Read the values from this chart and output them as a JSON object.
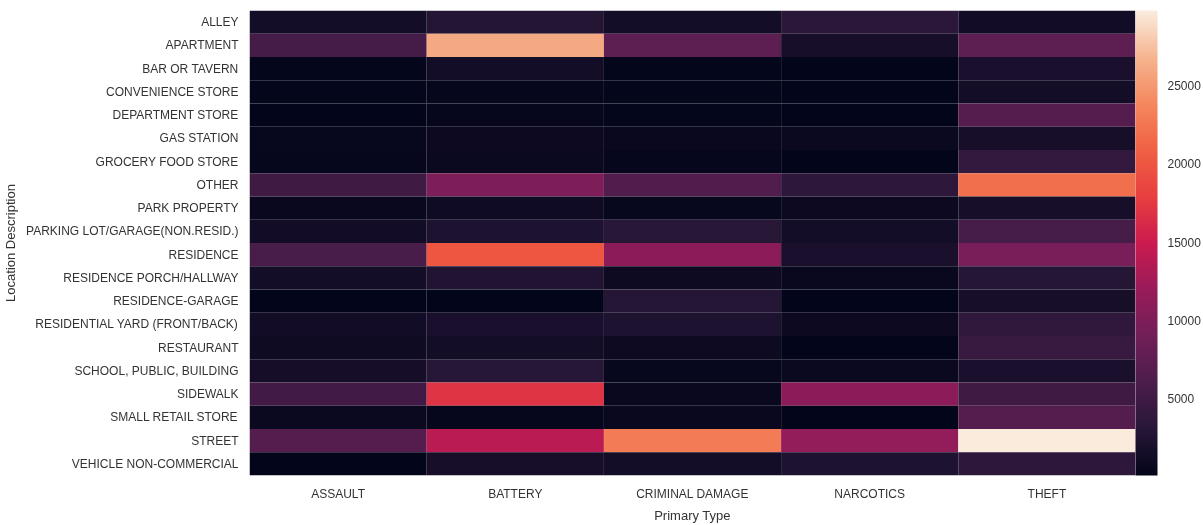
{
  "chart_data": {
    "type": "heatmap",
    "xlabel": "Primary Type",
    "ylabel": "Location Description",
    "categories": [
      "ASSAULT",
      "BATTERY",
      "CRIMINAL DAMAGE",
      "NARCOTICS",
      "THEFT"
    ],
    "y_categories": [
      "ALLEY",
      "APARTMENT",
      "BAR OR TAVERN",
      "CONVENIENCE STORE",
      "DEPARTMENT STORE",
      "GAS STATION",
      "GROCERY FOOD STORE",
      "OTHER",
      "PARK PROPERTY",
      "PARKING LOT/GARAGE(NON.RESID.)",
      "RESIDENCE",
      "RESIDENCE PORCH/HALLWAY",
      "RESIDENCE-GARAGE",
      "RESIDENTIAL YARD (FRONT/BACK)",
      "RESTAURANT",
      "SCHOOL, PUBLIC, BUILDING",
      "SIDEWALK",
      "SMALL RETAIL STORE",
      "STREET",
      "VEHICLE NON-COMMERCIAL"
    ],
    "cells": [
      [
        1500,
        2800,
        1500,
        3300,
        1300
      ],
      [
        5500,
        26000,
        7500,
        1800,
        7500
      ],
      [
        300,
        1500,
        300,
        200,
        2000
      ],
      [
        300,
        400,
        300,
        200,
        1600
      ],
      [
        200,
        400,
        300,
        200,
        6800
      ],
      [
        500,
        800,
        600,
        700,
        1800
      ],
      [
        400,
        700,
        400,
        200,
        4000
      ],
      [
        5000,
        10000,
        6400,
        3500,
        22000
      ],
      [
        600,
        1200,
        500,
        800,
        1800
      ],
      [
        1300,
        2200,
        3200,
        1600,
        5600
      ],
      [
        5800,
        20000,
        11000,
        2000,
        9500
      ],
      [
        1500,
        2600,
        1000,
        600,
        3000
      ],
      [
        100,
        100,
        3000,
        200,
        1800
      ],
      [
        1300,
        2000,
        2300,
        900,
        3700
      ],
      [
        1100,
        1400,
        1000,
        200,
        4500
      ],
      [
        1700,
        3100,
        500,
        700,
        2000
      ],
      [
        5200,
        17000,
        600,
        11000,
        5000
      ],
      [
        700,
        400,
        600,
        200,
        6800
      ],
      [
        6800,
        14000,
        23000,
        11500,
        29700
      ],
      [
        100,
        1800,
        1600,
        2200,
        3500
      ]
    ],
    "clim": [
      100,
      29800
    ],
    "cticks": [
      5000,
      10000,
      15000,
      20000,
      25000
    ]
  }
}
